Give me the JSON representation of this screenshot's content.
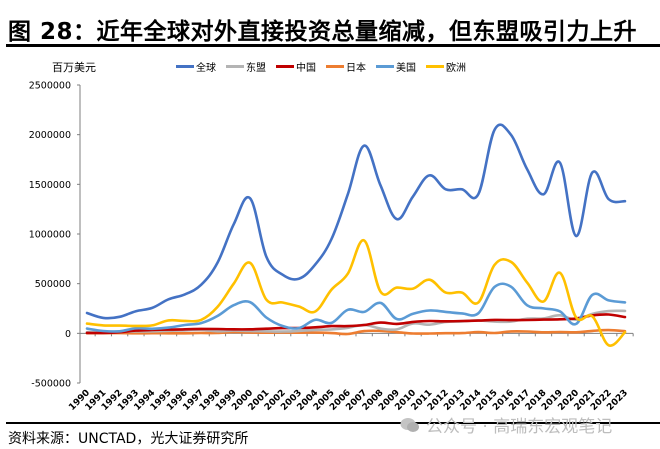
{
  "header": {
    "title": "图 28：近年全球对外直接投资总量缩减，但东盟吸引力上升"
  },
  "footer": {
    "source": "资料来源：UNCTAD，光大证券研究所",
    "watermark": "公众号 · 高瑞东宏观笔记",
    "watermark_icon": "wechat-icon"
  },
  "chart_data": {
    "type": "line",
    "title": "近年全球对外直接投资总量缩减，但东盟吸引力上升",
    "ylabel": "百万美元",
    "xlabel": "",
    "ylim": [
      -500000,
      2500000
    ],
    "yticks": [
      -500000,
      0,
      500000,
      1000000,
      1500000,
      2000000,
      2500000
    ],
    "ytick_labels": [
      "-500000",
      "0",
      "500000",
      "1000000",
      "1500000",
      "2000000",
      "2500000"
    ],
    "grid": false,
    "legend_position": "top",
    "x": [
      "1990",
      "1991",
      "1992",
      "1993",
      "1994",
      "1995",
      "1996",
      "1997",
      "1998",
      "1999",
      "2000",
      "2001",
      "2002",
      "2003",
      "2004",
      "2005",
      "2006",
      "2007",
      "2008",
      "2009",
      "2010",
      "2011",
      "2012",
      "2013",
      "2014",
      "2015",
      "2016",
      "2017",
      "2018",
      "2019",
      "2020",
      "2021",
      "2022",
      "2023"
    ],
    "series": [
      {
        "name": "全球",
        "color": "#4472C4",
        "values": [
          205000,
          155000,
          166000,
          223000,
          256000,
          343000,
          392000,
          489000,
          709000,
          1098000,
          1360000,
          772000,
          590000,
          550000,
          692000,
          950000,
          1400000,
          1890000,
          1490000,
          1150000,
          1380000,
          1590000,
          1450000,
          1450000,
          1400000,
          2050000,
          2000000,
          1650000,
          1400000,
          1720000,
          980000,
          1620000,
          1350000,
          1330000
        ]
      },
      {
        "name": "东盟",
        "color": "#B4B4B4",
        "values": [
          12000,
          15000,
          18000,
          18000,
          20000,
          26000,
          30000,
          34000,
          21000,
          28000,
          23000,
          20000,
          18000,
          24000,
          35000,
          40000,
          56000,
          85000,
          48000,
          40000,
          100000,
          87000,
          115000,
          120000,
          130000,
          118000,
          118000,
          147000,
          150000,
          182000,
          137000,
          196000,
          224000,
          226000
        ]
      },
      {
        "name": "中国",
        "color": "#C00000",
        "values": [
          3500,
          4400,
          11000,
          27500,
          33800,
          37500,
          40200,
          44200,
          43800,
          40300,
          40700,
          46900,
          52700,
          53500,
          60600,
          72400,
          72700,
          83500,
          108300,
          95000,
          114700,
          124000,
          121100,
          123900,
          128500,
          135600,
          133700,
          134100,
          138300,
          141200,
          149300,
          180800,
          189100,
          163300
        ]
      },
      {
        "name": "日本",
        "color": "#ED7D31",
        "values": [
          1800,
          1300,
          2800,
          100,
          900,
          0,
          200,
          3200,
          3300,
          12700,
          8300,
          6200,
          9200,
          6300,
          7800,
          2800,
          -6500,
          22500,
          24400,
          11900,
          -1300,
          -1800,
          1700,
          2300,
          12000,
          3200,
          19000,
          18800,
          9900,
          13900,
          10700,
          24700,
          32500,
          21400
        ]
      },
      {
        "name": "美国",
        "color": "#5B9BD5",
        "values": [
          48000,
          23000,
          20000,
          51000,
          46000,
          58000,
          84000,
          103000,
          174000,
          283000,
          314000,
          159000,
          74000,
          53000,
          136000,
          105000,
          237000,
          216000,
          306000,
          144000,
          198000,
          230000,
          216000,
          201000,
          202000,
          467000,
          470000,
          282000,
          251000,
          222000,
          95000,
          388000,
          332000,
          311000
        ]
      },
      {
        "name": "欧洲",
        "color": "#FFC000",
        "values": [
          98000,
          80000,
          78000,
          75000,
          80000,
          130000,
          125000,
          135000,
          265000,
          500000,
          710000,
          340000,
          310000,
          270000,
          220000,
          440000,
          600000,
          935000,
          420000,
          460000,
          450000,
          540000,
          410000,
          410000,
          310000,
          690000,
          720000,
          510000,
          320000,
          610000,
          160000,
          170000,
          -120000,
          10000
        ]
      }
    ]
  }
}
